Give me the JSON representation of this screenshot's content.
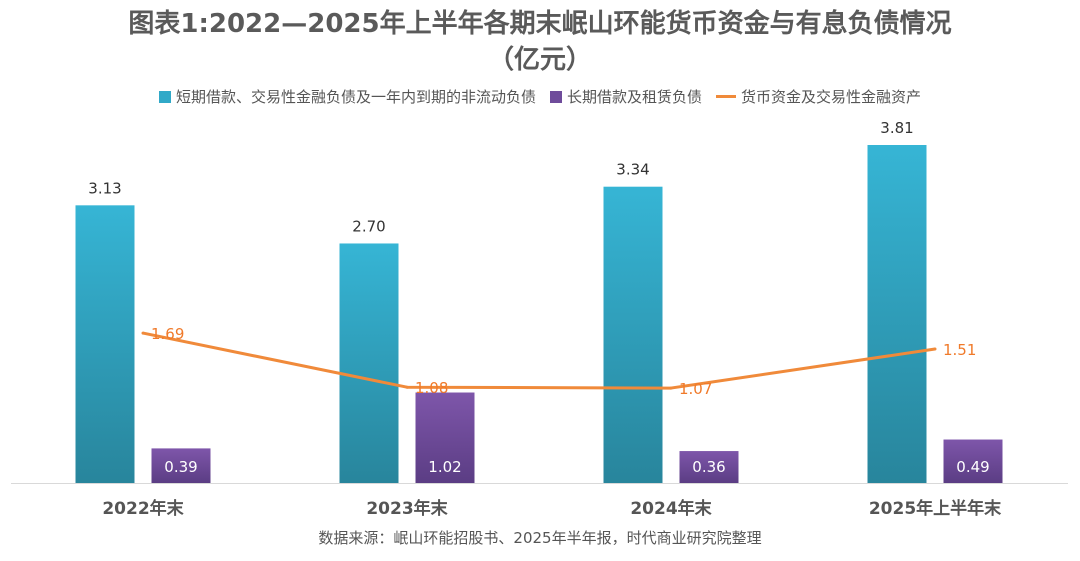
{
  "chart_data": {
    "type": "bar",
    "title": "图表1:2022—2025年上半年各期末岷山环能货币资金与有息负债情况",
    "subtitle": "（亿元）",
    "categories": [
      "2022年末",
      "2023年末",
      "2024年末",
      "2025年上半年末"
    ],
    "series": [
      {
        "name": "短期借款、交易性金融负债及一年内到期的非流动负债",
        "kind": "bar",
        "color": "#31a9c8",
        "values": [
          3.13,
          2.7,
          3.34,
          3.81
        ]
      },
      {
        "name": "长期借款及租赁负债",
        "kind": "bar",
        "color": "#6f4c9b",
        "values": [
          0.39,
          1.02,
          0.36,
          0.49
        ]
      },
      {
        "name": "货币资金及交易性金融资产",
        "kind": "line",
        "color": "#f08a3a",
        "values": [
          1.69,
          1.08,
          1.07,
          1.51
        ]
      }
    ],
    "ylim": [
      0,
      3.81
    ],
    "grid": false,
    "legend": "top",
    "source": "数据来源：岷山环能招股书、2025年半年报，时代商业研究院整理"
  }
}
